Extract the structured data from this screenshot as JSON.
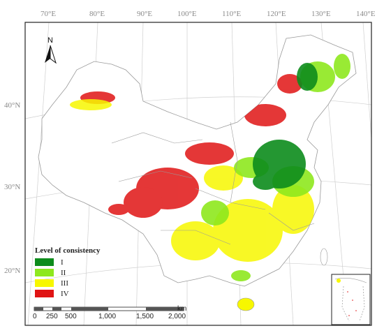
{
  "graticule": {
    "longitudes": [
      "70°E",
      "80°E",
      "90°E",
      "100°E",
      "110°E",
      "120°E",
      "130°E",
      "140°E"
    ],
    "latitudes": [
      "40°N",
      "30°N",
      "20°N"
    ]
  },
  "north_arrow": {
    "label": "N"
  },
  "legend": {
    "title": "Level of consistency",
    "items": [
      {
        "label": "I",
        "color": "#0d8c1c"
      },
      {
        "label": "II",
        "color": "#8ee81e"
      },
      {
        "label": "III",
        "color": "#f7f700"
      },
      {
        "label": "IV",
        "color": "#e01414"
      }
    ]
  },
  "scale_bar": {
    "ticks": [
      "0",
      "250",
      "500",
      "1,000",
      "1,500",
      "2,000"
    ],
    "unit": "km"
  },
  "colors": {
    "frame": "#222222",
    "boundary": "#9a9a9a",
    "graticule": "#cfcfcf"
  }
}
